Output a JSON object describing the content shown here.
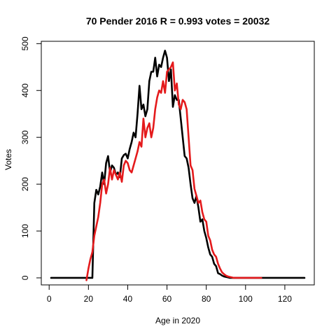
{
  "chart_data": {
    "type": "line",
    "title": "70 Pender 2016 R = 0.993 votes = 20032",
    "xlabel": "Age in 2020",
    "ylabel": "Votes",
    "xlim": [
      -4,
      135
    ],
    "ylim": [
      -15,
      505
    ],
    "xticks": [
      0,
      20,
      40,
      60,
      80,
      100,
      120
    ],
    "yticks": [
      0,
      100,
      200,
      300,
      400,
      500
    ],
    "grid": false,
    "legend": "none",
    "series": [
      {
        "color": "#000000",
        "x": [
          1,
          2,
          3,
          4,
          5,
          6,
          7,
          8,
          9,
          10,
          11,
          12,
          13,
          14,
          15,
          16,
          17,
          18,
          19,
          20,
          21,
          22,
          23,
          24,
          25,
          26,
          27,
          28,
          29,
          30,
          31,
          32,
          33,
          34,
          35,
          36,
          37,
          38,
          39,
          40,
          41,
          42,
          43,
          44,
          45,
          46,
          47,
          48,
          49,
          50,
          51,
          52,
          53,
          54,
          55,
          56,
          57,
          58,
          59,
          60,
          61,
          62,
          63,
          64,
          65,
          66,
          67,
          68,
          69,
          70,
          71,
          72,
          73,
          74,
          75,
          76,
          77,
          78,
          79,
          80,
          81,
          82,
          83,
          84,
          85,
          86,
          87,
          88,
          89,
          90,
          91,
          92,
          93,
          94,
          95,
          96,
          97,
          98,
          99,
          100,
          101,
          102,
          103,
          104,
          105,
          106,
          107,
          108,
          109,
          110,
          111,
          112,
          113,
          114,
          115,
          116,
          117,
          118,
          119,
          120,
          121,
          122,
          123,
          124,
          125,
          126,
          127,
          128,
          129,
          130
        ],
        "values": [
          0,
          0,
          0,
          0,
          0,
          0,
          0,
          0,
          0,
          0,
          0,
          0,
          0,
          0,
          0,
          0,
          0,
          0,
          0,
          0,
          0,
          0,
          160,
          188,
          178,
          195,
          225,
          200,
          245,
          260,
          225,
          240,
          235,
          220,
          225,
          215,
          255,
          262,
          265,
          255,
          275,
          290,
          310,
          300,
          350,
          410,
          360,
          370,
          345,
          360,
          420,
          440,
          440,
          470,
          430,
          455,
          450,
          470,
          485,
          470,
          420,
          445,
          365,
          390,
          380,
          380,
          340,
          300,
          260,
          255,
          235,
          200,
          170,
          160,
          175,
          150,
          120,
          125,
          100,
          85,
          65,
          50,
          45,
          30,
          25,
          10,
          8,
          5,
          3,
          2,
          1,
          0,
          0,
          0,
          0,
          0,
          0,
          0,
          0,
          0,
          0,
          0,
          0,
          0,
          0,
          0,
          0,
          0,
          0,
          0,
          0,
          0,
          0,
          0,
          0,
          0,
          0,
          0,
          0,
          0,
          0,
          0,
          0,
          0,
          0,
          0,
          0,
          0,
          0,
          0
        ]
      },
      {
        "color": "#e41a1c",
        "x": [
          19,
          20,
          21,
          22,
          23,
          24,
          25,
          26,
          27,
          28,
          29,
          30,
          31,
          32,
          33,
          34,
          35,
          36,
          37,
          38,
          39,
          40,
          41,
          42,
          43,
          44,
          45,
          46,
          47,
          48,
          49,
          50,
          51,
          52,
          53,
          54,
          55,
          56,
          57,
          58,
          59,
          60,
          61,
          62,
          63,
          64,
          65,
          66,
          67,
          68,
          69,
          70,
          71,
          72,
          73,
          74,
          75,
          76,
          77,
          78,
          79,
          80,
          81,
          82,
          83,
          84,
          85,
          86,
          87,
          88,
          89,
          90,
          91,
          92,
          93,
          94,
          95,
          96,
          97,
          98,
          99,
          100,
          101,
          102,
          103,
          104,
          105,
          106,
          107,
          108
        ],
        "values": [
          -5,
          20,
          40,
          55,
          90,
          110,
          130,
          160,
          200,
          210,
          180,
          200,
          235,
          210,
          230,
          220,
          210,
          225,
          205,
          240,
          250,
          245,
          230,
          225,
          240,
          255,
          270,
          290,
          280,
          340,
          300,
          320,
          330,
          300,
          320,
          360,
          385,
          400,
          395,
          420,
          395,
          440,
          445,
          450,
          460,
          400,
          415,
          370,
          360,
          380,
          375,
          360,
          300,
          240,
          230,
          190,
          175,
          160,
          165,
          140,
          125,
          120,
          90,
          80,
          60,
          50,
          45,
          30,
          20,
          12,
          8,
          5,
          3,
          2,
          1,
          0,
          0,
          0,
          0,
          0,
          0,
          0,
          0,
          0,
          0,
          0,
          0,
          0,
          0,
          0
        ]
      }
    ]
  }
}
